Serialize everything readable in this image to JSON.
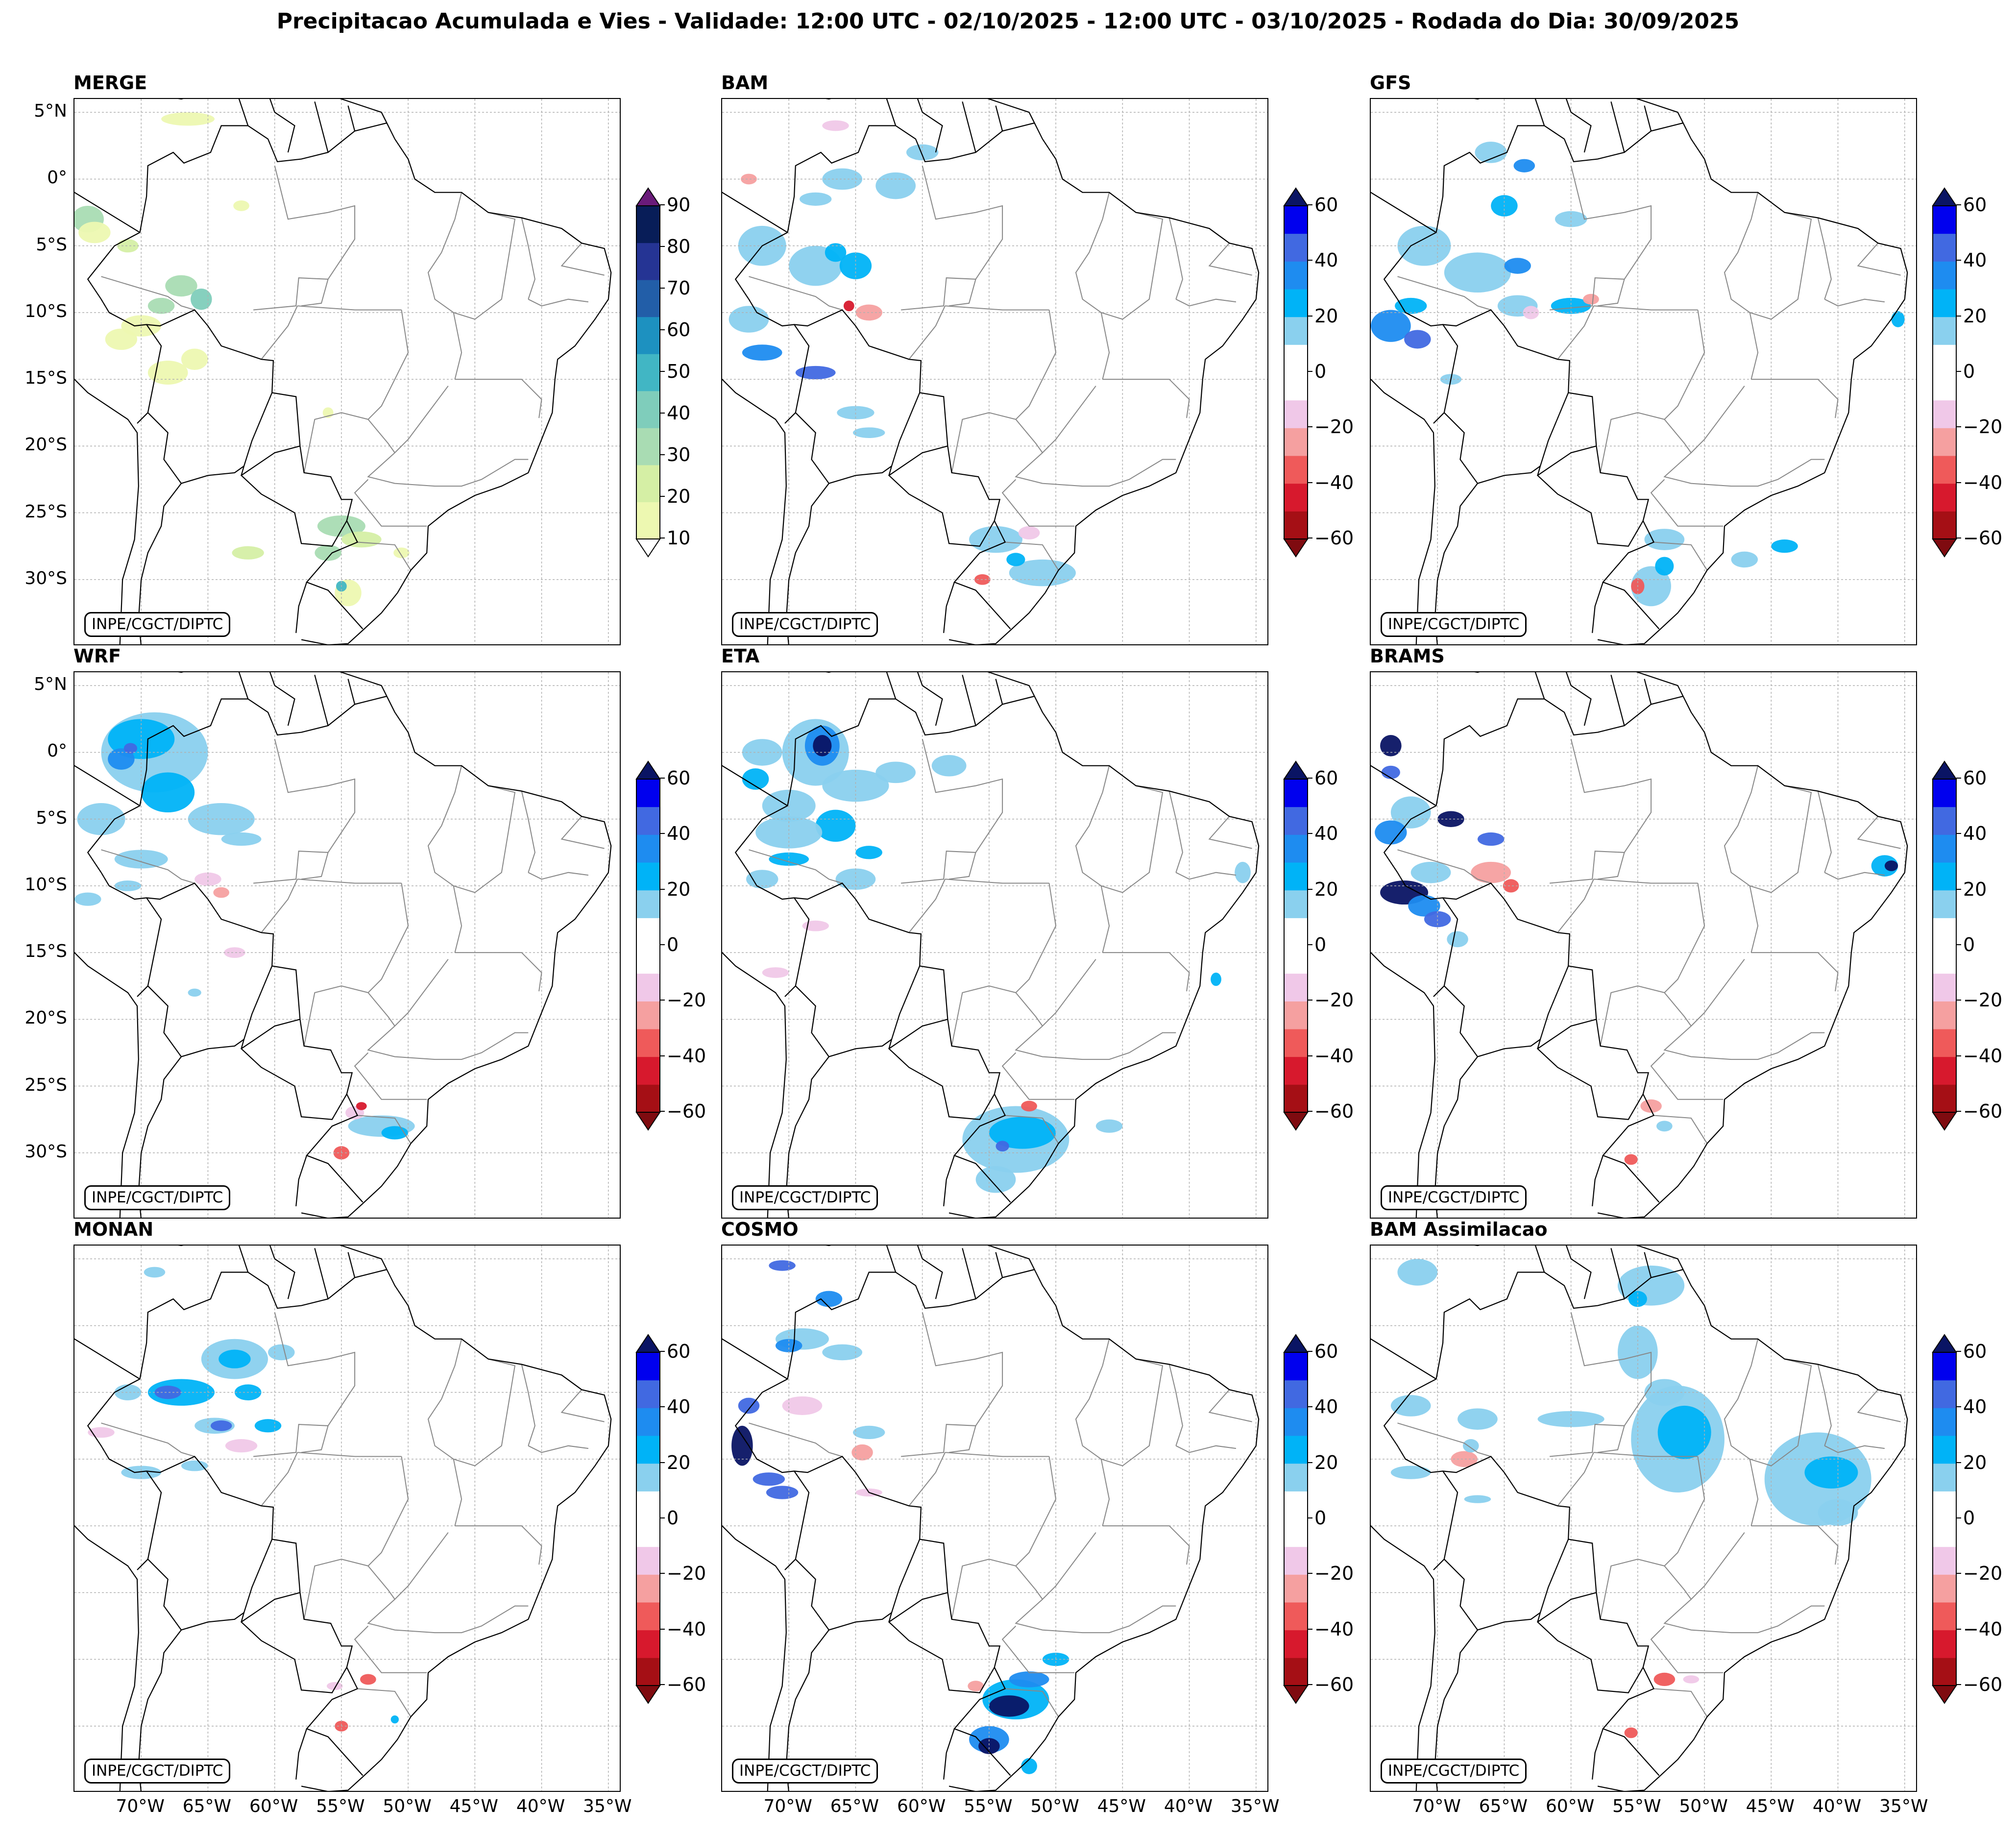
{
  "title": "Precipitacao Acumulada e Vies - Validade: 12:00 UTC - 02/10/2025 - 12:00 UTC - 03/10/2025 - Rodada do Dia: 30/09/2025",
  "credit": "INPE/CGCT/DIPTC",
  "lat_ticks": [
    "5°N",
    "0°",
    "5°S",
    "10°S",
    "15°S",
    "20°S",
    "25°S",
    "30°S"
  ],
  "lon_ticks": [
    "70°W",
    "65°W",
    "60°W",
    "55°W",
    "50°W",
    "45°W",
    "40°W",
    "35°W"
  ],
  "panels": [
    {
      "id": "merge",
      "label": "MERGE",
      "colorbar": "merge",
      "left_labels": true,
      "bottom_labels": false
    },
    {
      "id": "bam",
      "label": "BAM",
      "colorbar": "bias",
      "left_labels": false,
      "bottom_labels": false
    },
    {
      "id": "gfs",
      "label": "GFS",
      "colorbar": "bias",
      "left_labels": false,
      "bottom_labels": false
    },
    {
      "id": "wrf",
      "label": "WRF",
      "colorbar": "bias",
      "left_labels": true,
      "bottom_labels": false
    },
    {
      "id": "eta",
      "label": "ETA",
      "colorbar": "bias",
      "left_labels": false,
      "bottom_labels": false
    },
    {
      "id": "brams",
      "label": "BRAMS",
      "colorbar": "bias",
      "left_labels": false,
      "bottom_labels": false
    },
    {
      "id": "monan",
      "label": "MONAN",
      "colorbar": "bias",
      "left_labels": false,
      "bottom_labels": true
    },
    {
      "id": "cosmo",
      "label": "COSMO",
      "colorbar": "bias",
      "left_labels": false,
      "bottom_labels": true
    },
    {
      "id": "bam-assim",
      "label": "BAM Assimilacao",
      "colorbar": "bias",
      "left_labels": false,
      "bottom_labels": true
    }
  ],
  "colorbars": {
    "merge": {
      "ticks": [
        "90",
        "80",
        "70",
        "60",
        "50",
        "40",
        "30",
        "20",
        "10"
      ],
      "colors": [
        "#edf8b1",
        "#d5efa5",
        "#a9dcb3",
        "#7fcdbb",
        "#41b6c4",
        "#1d91c0",
        "#225ea8",
        "#253494",
        "#081d58"
      ],
      "over": "#6a1b7a",
      "under": "#ffffff"
    },
    "bias": {
      "ticks": [
        "60",
        "40",
        "20",
        "0",
        "−20",
        "−40",
        "−60"
      ],
      "colors": [
        "#a50f15",
        "#d7192d",
        "#ef5a5a",
        "#f5a0a0",
        "#f0c8e8",
        "#ffffff",
        "#ffffff",
        "#8ad0ee",
        "#00b3f7",
        "#1e8cf0",
        "#4169e1",
        "#0000ee"
      ],
      "over": "#0a1464",
      "under": "#7f0b10"
    }
  }
}
